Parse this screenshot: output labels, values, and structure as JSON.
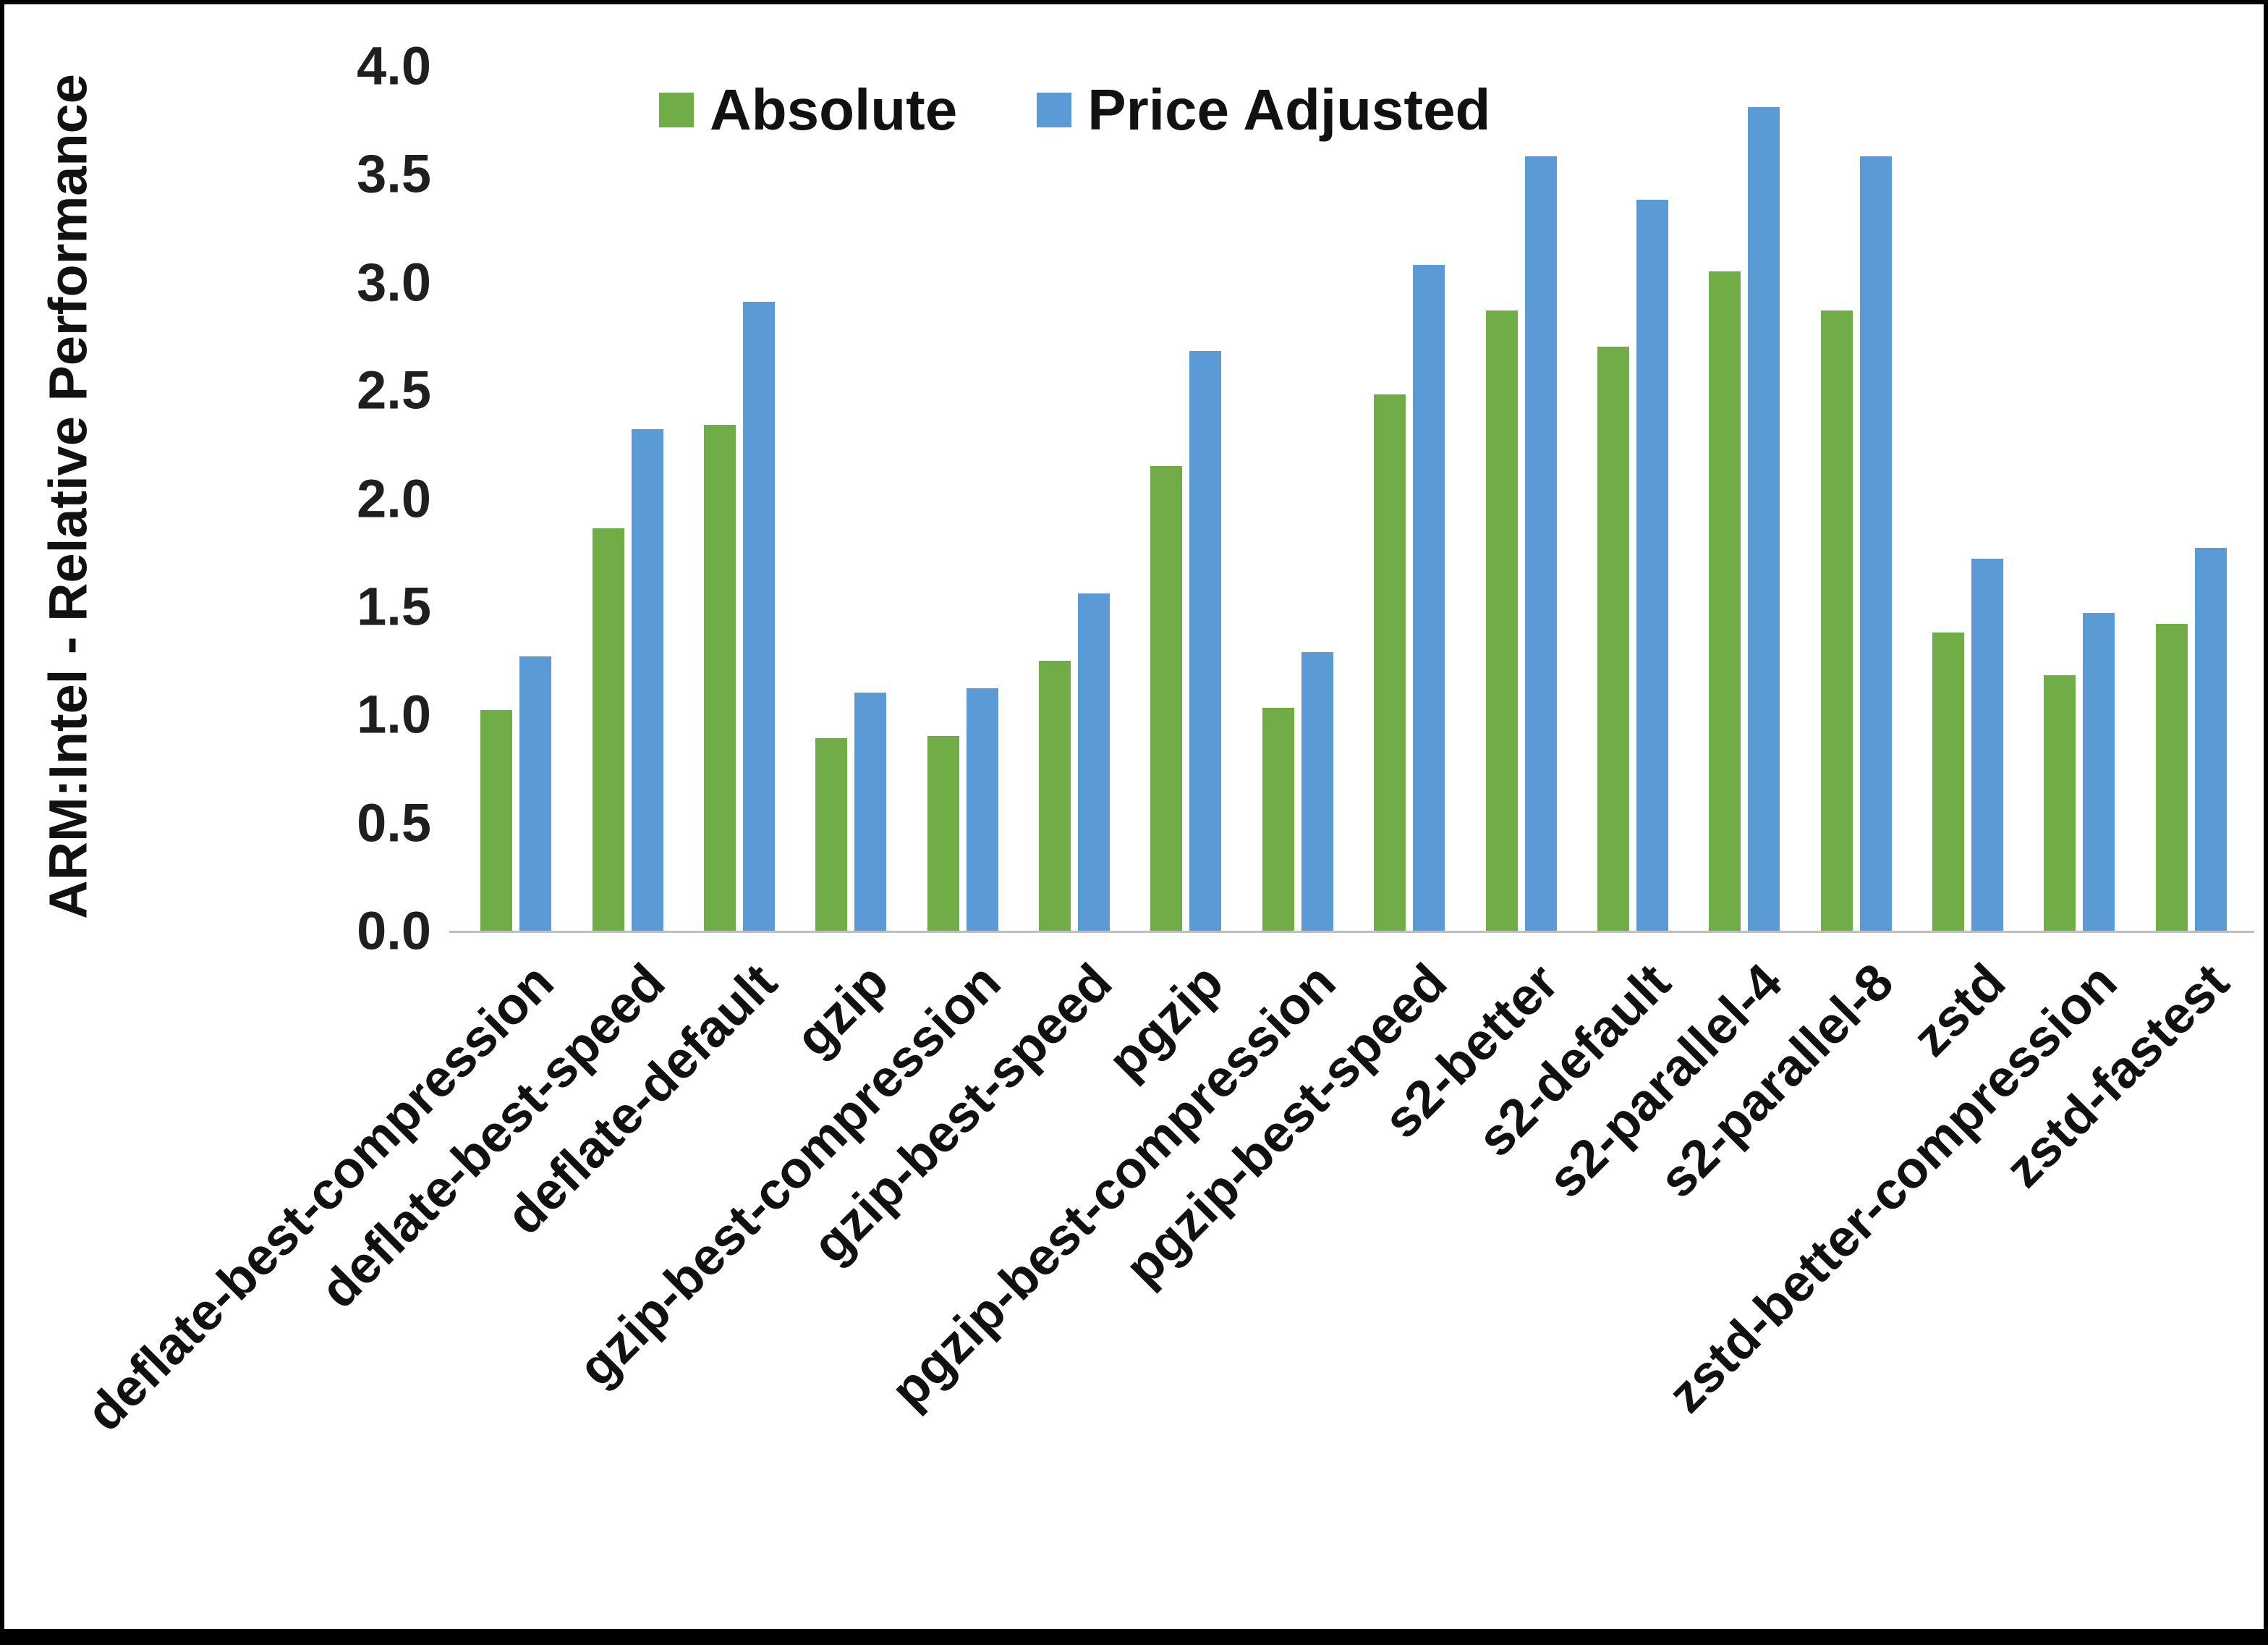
{
  "chart_data": {
    "type": "bar",
    "title": "",
    "xlabel": "",
    "ylabel": "ARM:Intel - Relative Performance",
    "ylim": [
      0,
      4.0
    ],
    "ytick_labels": [
      "4.0",
      "3.5",
      "3.0",
      "2.5",
      "2.0",
      "1.5",
      "1.0",
      "0.5",
      "0.0"
    ],
    "grid": false,
    "legend_position": "top",
    "categories": [
      "deflate-best-compression",
      "deflate-best-speed",
      "deflate-default",
      "gzip",
      "gzip-best-compression",
      "gzip-best-speed",
      "pgzip",
      "pgzip-best-compression",
      "pgzip-best-speed",
      "s2-better",
      "s2-default",
      "s2-parallel-4",
      "s2-parallel-8",
      "zstd",
      "zstd-better-compression",
      "zstd-fastest"
    ],
    "series": [
      {
        "name": "Absolute",
        "color": "#70AD47",
        "values": [
          1.02,
          1.86,
          2.34,
          0.89,
          0.9,
          1.25,
          2.15,
          1.03,
          2.48,
          2.87,
          2.7,
          3.05,
          2.87,
          1.38,
          1.18,
          1.42
        ]
      },
      {
        "name": "Price Adjusted",
        "color": "#5B9BD5",
        "values": [
          1.27,
          2.32,
          2.91,
          1.1,
          1.12,
          1.56,
          2.68,
          1.29,
          3.08,
          3.58,
          3.38,
          3.81,
          3.58,
          1.72,
          1.47,
          1.77
        ]
      }
    ],
    "axis_color": "#BFBFBF"
  }
}
